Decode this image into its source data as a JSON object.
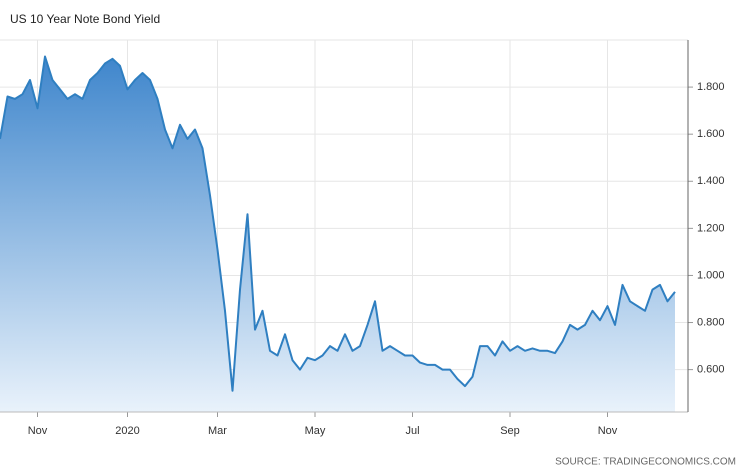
{
  "chart_data": {
    "type": "area",
    "title": "US 10 Year Note Bond Yield",
    "source": "SOURCE: TRADINGECONOMICS.COM",
    "categories": [
      null,
      null,
      null,
      null,
      null,
      "Nov",
      null,
      null,
      null,
      null,
      null,
      null,
      null,
      null,
      null,
      null,
      null,
      "2020",
      null,
      null,
      null,
      null,
      null,
      null,
      null,
      null,
      null,
      null,
      null,
      "Mar",
      null,
      null,
      null,
      null,
      null,
      null,
      null,
      null,
      null,
      null,
      null,
      null,
      "May",
      null,
      null,
      null,
      null,
      null,
      null,
      null,
      null,
      null,
      null,
      null,
      null,
      "Jul",
      null,
      null,
      null,
      null,
      null,
      null,
      null,
      null,
      null,
      null,
      null,
      null,
      "Sep",
      null,
      null,
      null,
      null,
      null,
      null,
      null,
      null,
      null,
      null,
      null,
      null,
      "Nov",
      null,
      null,
      null,
      null,
      null,
      null,
      null,
      null,
      null
    ],
    "series": [
      {
        "name": "US 10 Year Note Bond Yield",
        "color": "#2f7fc1",
        "values": [
          1.58,
          1.76,
          1.75,
          1.77,
          1.83,
          1.71,
          1.93,
          1.83,
          1.79,
          1.75,
          1.77,
          1.75,
          1.83,
          1.86,
          1.9,
          1.92,
          1.89,
          1.79,
          1.83,
          1.86,
          1.83,
          1.75,
          1.62,
          1.54,
          1.64,
          1.58,
          1.62,
          1.54,
          1.34,
          1.11,
          0.85,
          0.51,
          0.94,
          1.26,
          0.77,
          0.85,
          0.68,
          0.66,
          0.75,
          0.64,
          0.6,
          0.65,
          0.64,
          0.66,
          0.7,
          0.68,
          0.75,
          0.68,
          0.7,
          0.79,
          0.89,
          0.68,
          0.7,
          0.68,
          0.66,
          0.66,
          0.63,
          0.62,
          0.62,
          0.6,
          0.6,
          0.56,
          0.53,
          0.57,
          0.7,
          0.7,
          0.66,
          0.72,
          0.68,
          0.7,
          0.68,
          0.69,
          0.68,
          0.68,
          0.67,
          0.72,
          0.79,
          0.77,
          0.79,
          0.85,
          0.81,
          0.87,
          0.79,
          0.96,
          0.89,
          0.87,
          0.85,
          0.94,
          0.96,
          0.89,
          0.93
        ]
      }
    ],
    "ylim": [
      0.42,
      2.0
    ],
    "yticks": [
      {
        "value": 0.6,
        "label": "0.600"
      },
      {
        "value": 0.8,
        "label": "0.800"
      },
      {
        "value": 1.0,
        "label": "1.000"
      },
      {
        "value": 1.2,
        "label": "1.200"
      },
      {
        "value": 1.4,
        "label": "1.400"
      },
      {
        "value": 1.6,
        "label": "1.600"
      },
      {
        "value": 1.8,
        "label": "1.800"
      }
    ],
    "grid": true
  }
}
